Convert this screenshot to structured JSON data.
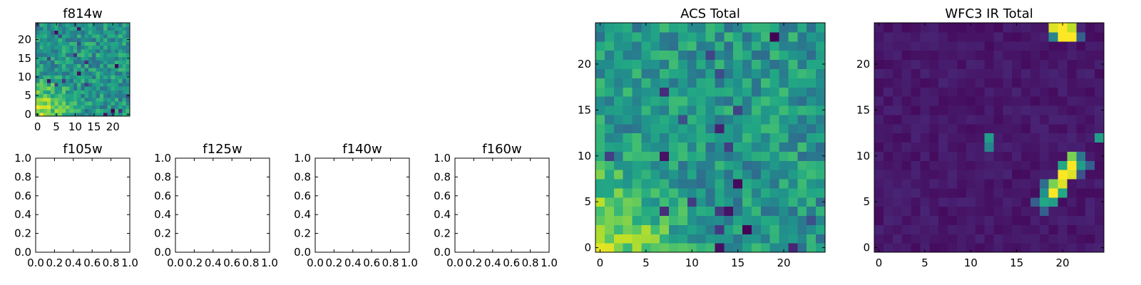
{
  "figure": {
    "background": "#ffffff"
  },
  "chart_data": [
    {
      "type": "heatmap",
      "title": "f814w",
      "xlabel": "",
      "ylabel": "",
      "xlim": [
        -0.5,
        24.5
      ],
      "ylim": [
        -0.5,
        24.5
      ],
      "xticks": [
        "0",
        "5",
        "10",
        "15",
        "20"
      ],
      "yticks": [
        "0",
        "5",
        "10",
        "15",
        "20"
      ],
      "colormap": "viridis",
      "grid_size": [
        25,
        25
      ],
      "grid": false,
      "pattern": "noisy green field, brighter yellow region toward lower-left"
    },
    {
      "type": "heatmap",
      "title": "f105w",
      "xlim": [
        0.0,
        1.0
      ],
      "ylim": [
        0.0,
        1.0
      ],
      "xticks": [
        "0.0",
        "0.2",
        "0.4",
        "0.6",
        "0.8",
        "1.0"
      ],
      "yticks": [
        "0.0",
        "0.2",
        "0.4",
        "0.6",
        "0.8",
        "1.0"
      ],
      "empty": true
    },
    {
      "type": "heatmap",
      "title": "f125w",
      "xlim": [
        0.0,
        1.0
      ],
      "ylim": [
        0.0,
        1.0
      ],
      "xticks": [
        "0.0",
        "0.2",
        "0.4",
        "0.6",
        "0.8",
        "1.0"
      ],
      "yticks": [
        "0.0",
        "0.2",
        "0.4",
        "0.6",
        "0.8",
        "1.0"
      ],
      "empty": true
    },
    {
      "type": "heatmap",
      "title": "f140w",
      "xlim": [
        0.0,
        1.0
      ],
      "ylim": [
        0.0,
        1.0
      ],
      "xticks": [
        "0.0",
        "0.2",
        "0.4",
        "0.6",
        "0.8",
        "1.0"
      ],
      "yticks": [
        "0.0",
        "0.2",
        "0.4",
        "0.6",
        "0.8",
        "1.0"
      ],
      "empty": true
    },
    {
      "type": "heatmap",
      "title": "f160w",
      "xlim": [
        0.0,
        1.0
      ],
      "ylim": [
        0.0,
        1.0
      ],
      "xticks": [
        "0.0",
        "0.2",
        "0.4",
        "0.6",
        "0.8",
        "1.0"
      ],
      "yticks": [
        "0.0",
        "0.2",
        "0.4",
        "0.6",
        "0.8",
        "1.0"
      ],
      "empty": true
    },
    {
      "type": "heatmap",
      "title": "ACS Total",
      "xlim": [
        -0.5,
        24.5
      ],
      "ylim": [
        -0.5,
        24.5
      ],
      "xticks": [
        "0",
        "5",
        "10",
        "15",
        "20"
      ],
      "yticks": [
        "0",
        "5",
        "10",
        "15",
        "20"
      ],
      "colormap": "viridis",
      "grid_size": [
        25,
        25
      ],
      "pattern": "noisy green field, brighter yellow region toward lower-left, scattered dark pixels"
    },
    {
      "type": "heatmap",
      "title": "WFC3 IR Total",
      "xlim": [
        -0.5,
        24.5
      ],
      "ylim": [
        -0.5,
        24.5
      ],
      "xticks": [
        "0",
        "5",
        "10",
        "15",
        "20"
      ],
      "yticks": [
        "0",
        "5",
        "10",
        "15",
        "20"
      ],
      "colormap": "viridis",
      "grid_size": [
        25,
        25
      ],
      "pattern": "dark purple background with bright yellow source at top near x=20, small teal spot near x=12 y=11, bright diagonal streak from x=18 y=5 to x=21 y=10"
    }
  ]
}
